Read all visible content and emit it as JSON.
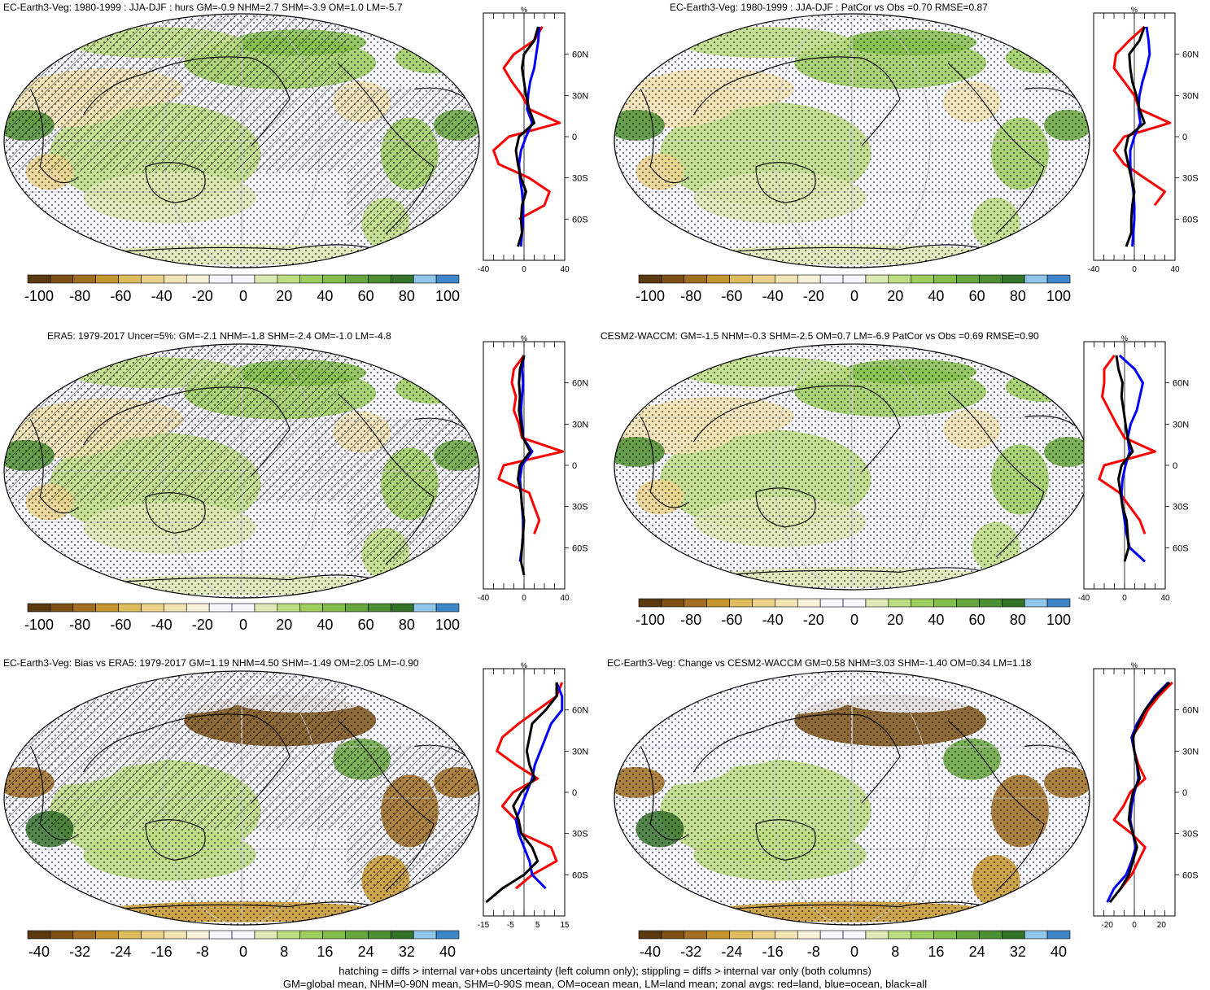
{
  "colors": {
    "scale": [
      "#5a3a10",
      "#7d5116",
      "#a06e22",
      "#c4962f",
      "#dcbb5c",
      "#ead28c",
      "#f2e3b4",
      "#f7f2da",
      "#f6f6ff",
      "#f6f6ff",
      "#dde9b4",
      "#bcdc83",
      "#9ecd5f",
      "#84bd4c",
      "#67a63e",
      "#4e8f33",
      "#35722a",
      "#8ec5e8",
      "#3f86c8"
    ],
    "ocean_base": "#f6f6ff",
    "land_line": "#000000",
    "land": "#ff0000",
    "ocean": "#0000ff",
    "all": "#000000"
  },
  "panels": [
    {
      "title": "EC-Earth3-Veg: 1980-1999 : JJA-DJF : hurs GM=-0.9 NHM=2.7 SHM=-3.9 OM=1.0 LM=-5.7",
      "zonal_axis": {
        "unit": "%",
        "x_ticks": [
          "-40",
          "0",
          "40"
        ],
        "lat_ticks": [
          "60N",
          "30N",
          "0",
          "30S",
          "60S"
        ]
      },
      "colorbar": {
        "labels": [
          "-100",
          "-80",
          "-60",
          "-40",
          "-20",
          "0",
          "20",
          "40",
          "60",
          "80",
          "100"
        ]
      }
    },
    {
      "title": "EC-Earth3-Veg: 1980-1999 : JJA-DJF : PatCor vs Obs =0.70 RMSE=0.87",
      "zonal_axis": {
        "unit": "%",
        "x_ticks": [
          "-40",
          "0",
          "40"
        ],
        "lat_ticks": [
          "60N",
          "30N",
          "0",
          "30S",
          "60S"
        ]
      },
      "colorbar": {
        "labels": [
          "-100",
          "-80",
          "-60",
          "-40",
          "-20",
          "0",
          "20",
          "40",
          "60",
          "80",
          "100"
        ]
      }
    },
    {
      "title": "ERA5: 1979-2017 Uncer=5%: GM=-2.1 NHM=-1.8 SHM=-2.4 OM=-1.0 LM=-4.8",
      "zonal_axis": {
        "unit": "%",
        "x_ticks": [
          "-40",
          "0",
          "40"
        ],
        "lat_ticks": [
          "60N",
          "30N",
          "0",
          "30S",
          "60S"
        ]
      },
      "colorbar": {
        "labels": [
          "-100",
          "-80",
          "-60",
          "-40",
          "-20",
          "0",
          "20",
          "40",
          "60",
          "80",
          "100"
        ]
      }
    },
    {
      "title": "CESM2-WACCM: GM=-1.5 NHM=-0.3 SHM=-2.5 OM=0.7 LM=-6.9 PatCor vs Obs =0.69 RMSE=0.90",
      "zonal_axis": {
        "unit": "%",
        "x_ticks": [
          "-40",
          "0",
          "40"
        ],
        "lat_ticks": [
          "60N",
          "30N",
          "0",
          "30S",
          "60S"
        ]
      },
      "colorbar": {
        "labels": [
          "-100",
          "-80",
          "-60",
          "-40",
          "-20",
          "0",
          "20",
          "40",
          "60",
          "80",
          "100"
        ]
      }
    },
    {
      "title": "EC-Earth3-Veg: Bias vs ERA5: 1979-2017 GM=1.19 NHM=4.50 SHM=-1.49 OM=2.05 LM=-0.90",
      "zonal_axis": {
        "unit": "%",
        "x_ticks": [
          "-15",
          "-5",
          "5",
          "15"
        ],
        "lat_ticks": [
          "60N",
          "30N",
          "0",
          "30S",
          "60S"
        ]
      },
      "colorbar": {
        "labels": [
          "-40",
          "-32",
          "-24",
          "-16",
          "-8",
          "0",
          "8",
          "16",
          "24",
          "32",
          "40"
        ]
      }
    },
    {
      "title": "EC-Earth3-Veg: Change vs CESM2-WACCM GM=0.58 NHM=3.03 SHM=-1.40 OM=0.34 LM=1.18",
      "zonal_axis": {
        "unit": "%",
        "x_ticks": [
          "-20",
          "0",
          "20"
        ],
        "lat_ticks": [
          "60N",
          "30N",
          "0",
          "30S",
          "60S"
        ]
      },
      "colorbar": {
        "labels": [
          "-40",
          "-32",
          "-24",
          "-16",
          "-8",
          "0",
          "8",
          "16",
          "24",
          "32",
          "40"
        ]
      }
    }
  ],
  "chart_data": [
    {
      "type": "line",
      "title": "EC-Earth3-Veg: 1980-1999 : JJA-DJF : hurs GM=-0.9 NHM=2.7 SHM=-3.9 OM=1.0 LM=-5.7",
      "xlim": [
        -40,
        40
      ],
      "xlabel": "%",
      "y": [
        80,
        70,
        60,
        50,
        40,
        30,
        20,
        10,
        0,
        -10,
        -20,
        -30,
        -40,
        -50,
        -60,
        -70,
        -80
      ],
      "series": [
        {
          "name": "land",
          "values": [
            18,
            10,
            -10,
            -20,
            -12,
            -2,
            5,
            35,
            -15,
            -30,
            -25,
            5,
            25,
            20,
            -5,
            null,
            null
          ]
        },
        {
          "name": "ocean",
          "values": [
            15,
            14,
            12,
            10,
            6,
            4,
            3,
            8,
            2,
            -3,
            -5,
            -4,
            -2,
            -1,
            -1,
            -2,
            -3
          ]
        },
        {
          "name": "all",
          "values": [
            14,
            10,
            0,
            -2,
            0,
            2,
            5,
            10,
            -5,
            -8,
            -6,
            -3,
            2,
            -2,
            -3,
            -2,
            -6
          ]
        }
      ]
    },
    {
      "type": "line",
      "title": "EC-Earth3-Veg: 1980-1999 : JJA-DJF : PatCor vs Obs =0.70 RMSE=0.87",
      "xlim": [
        -40,
        40
      ],
      "xlabel": "%",
      "y": [
        80,
        70,
        60,
        50,
        40,
        30,
        20,
        10,
        0,
        -10,
        -20,
        -30,
        -40,
        -50,
        -60,
        -70,
        -80
      ],
      "series": [
        {
          "name": "land",
          "values": [
            10,
            -5,
            -18,
            -20,
            -10,
            0,
            5,
            35,
            -10,
            -20,
            -10,
            10,
            30,
            20,
            null,
            -5,
            null
          ]
        },
        {
          "name": "ocean",
          "values": [
            12,
            14,
            15,
            12,
            8,
            5,
            4,
            6,
            0,
            -4,
            -4,
            -3,
            -1,
            0,
            0,
            -1,
            -2
          ]
        },
        {
          "name": "all",
          "values": [
            10,
            5,
            -5,
            -4,
            -2,
            2,
            5,
            10,
            -6,
            -9,
            -6,
            -3,
            0,
            -2,
            -3,
            -3,
            -8
          ]
        }
      ]
    },
    {
      "type": "line",
      "title": "ERA5: 1979-2017 Uncer=5%: GM=-2.1 NHM=-1.8 SHM=-2.4 OM=-1.0 LM=-4.8",
      "xlim": [
        -40,
        40
      ],
      "xlabel": "%",
      "y": [
        80,
        70,
        60,
        50,
        40,
        30,
        20,
        10,
        0,
        -10,
        -20,
        -30,
        -40,
        -50,
        -60,
        -70,
        -80
      ],
      "series": [
        {
          "name": "land",
          "values": [
            0,
            -10,
            -12,
            -8,
            -10,
            -5,
            -2,
            38,
            -20,
            -25,
            5,
            10,
            15,
            10,
            null,
            -5,
            null
          ]
        },
        {
          "name": "ocean",
          "values": [
            0,
            -2,
            -1,
            -2,
            -3,
            -2,
            -1,
            8,
            -2,
            -4,
            -3,
            -2,
            -1,
            -1,
            -2,
            -4,
            null
          ]
        },
        {
          "name": "all",
          "values": [
            0,
            -4,
            -5,
            -4,
            -5,
            -3,
            -1,
            6,
            -4,
            -6,
            -3,
            -2,
            0,
            -1,
            -2,
            -3,
            0
          ]
        }
      ]
    },
    {
      "type": "line",
      "title": "CESM2-WACCM: GM=-1.5 NHM=-0.3 SHM=-2.5 OM=0.7 LM=-6.9 PatCor vs Obs =0.69 RMSE=0.90",
      "xlim": [
        -40,
        40
      ],
      "xlabel": "%",
      "y": [
        80,
        70,
        60,
        50,
        40,
        30,
        20,
        10,
        0,
        -10,
        -20,
        -30,
        -40,
        -50,
        -60,
        -70,
        -80
      ],
      "series": [
        {
          "name": "land",
          "values": [
            -10,
            -20,
            -20,
            -22,
            -15,
            -8,
            0,
            30,
            -20,
            -25,
            -5,
            5,
            15,
            20,
            null,
            5,
            null
          ]
        },
        {
          "name": "ocean",
          "values": [
            -5,
            10,
            18,
            15,
            12,
            6,
            3,
            5,
            1,
            -2,
            -3,
            -2,
            0,
            2,
            5,
            20,
            null
          ]
        },
        {
          "name": "all",
          "values": [
            -8,
            -6,
            -2,
            -3,
            -1,
            1,
            3,
            8,
            -3,
            -6,
            -4,
            -2,
            2,
            3,
            4,
            0,
            null
          ]
        }
      ]
    },
    {
      "type": "line",
      "title": "EC-Earth3-Veg: Bias vs ERA5: 1979-2017 GM=1.19 NHM=4.50 SHM=-1.49 OM=2.05 LM=-0.90",
      "xlim": [
        -15,
        15
      ],
      "xlabel": "%",
      "y": [
        80,
        70,
        60,
        50,
        40,
        30,
        20,
        10,
        0,
        -10,
        -20,
        -30,
        -40,
        -50,
        -60,
        -70,
        -80
      ],
      "series": [
        {
          "name": "land",
          "values": [
            14,
            12,
            5,
            -2,
            -8,
            -10,
            -3,
            5,
            -4,
            -8,
            -3,
            -1,
            10,
            12,
            3,
            -3,
            null
          ]
        },
        {
          "name": "ocean",
          "values": [
            12,
            14,
            14,
            10,
            8,
            6,
            4,
            3,
            1,
            -1,
            -3,
            -2,
            0,
            2,
            3,
            8,
            null
          ]
        },
        {
          "name": "all",
          "values": [
            12,
            12,
            8,
            3,
            2,
            1,
            2,
            4,
            -1,
            -4,
            -2,
            -1,
            3,
            5,
            0,
            -8,
            -14
          ]
        }
      ]
    },
    {
      "type": "line",
      "title": "EC-Earth3-Veg: Change vs CESM2-WACCM GM=0.58 NHM=3.03 SHM=-1.40 OM=0.34 LM=1.18",
      "xlim": [
        -30,
        30
      ],
      "xlabel": "%",
      "y": [
        80,
        70,
        60,
        50,
        40,
        30,
        20,
        10,
        0,
        -10,
        -20,
        -30,
        -40,
        -50,
        -60,
        -70,
        -80
      ],
      "series": [
        {
          "name": "land",
          "values": [
            28,
            18,
            10,
            5,
            -2,
            0,
            3,
            8,
            -3,
            -8,
            -15,
            -2,
            8,
            3,
            -2,
            -10,
            null
          ]
        },
        {
          "name": "ocean",
          "values": [
            25,
            15,
            8,
            2,
            -2,
            0,
            2,
            3,
            0,
            -2,
            -3,
            -1,
            1,
            -2,
            -6,
            -15,
            -20
          ]
        },
        {
          "name": "all",
          "values": [
            26,
            16,
            8,
            3,
            -1,
            0,
            2,
            4,
            -1,
            -3,
            -4,
            -1,
            2,
            -1,
            -4,
            -10,
            -18
          ]
        }
      ]
    }
  ],
  "footer": {
    "line1": "hatching = diffs > internal var+obs uncertainty (left column only); stippling = diffs > internal var only (both columns)",
    "line2": "GM=global mean, NHM=0-90N mean, SHM=0-90S mean, OM=ocean mean, LM=land mean; zonal avgs: red=land, blue=ocean, black=all"
  }
}
